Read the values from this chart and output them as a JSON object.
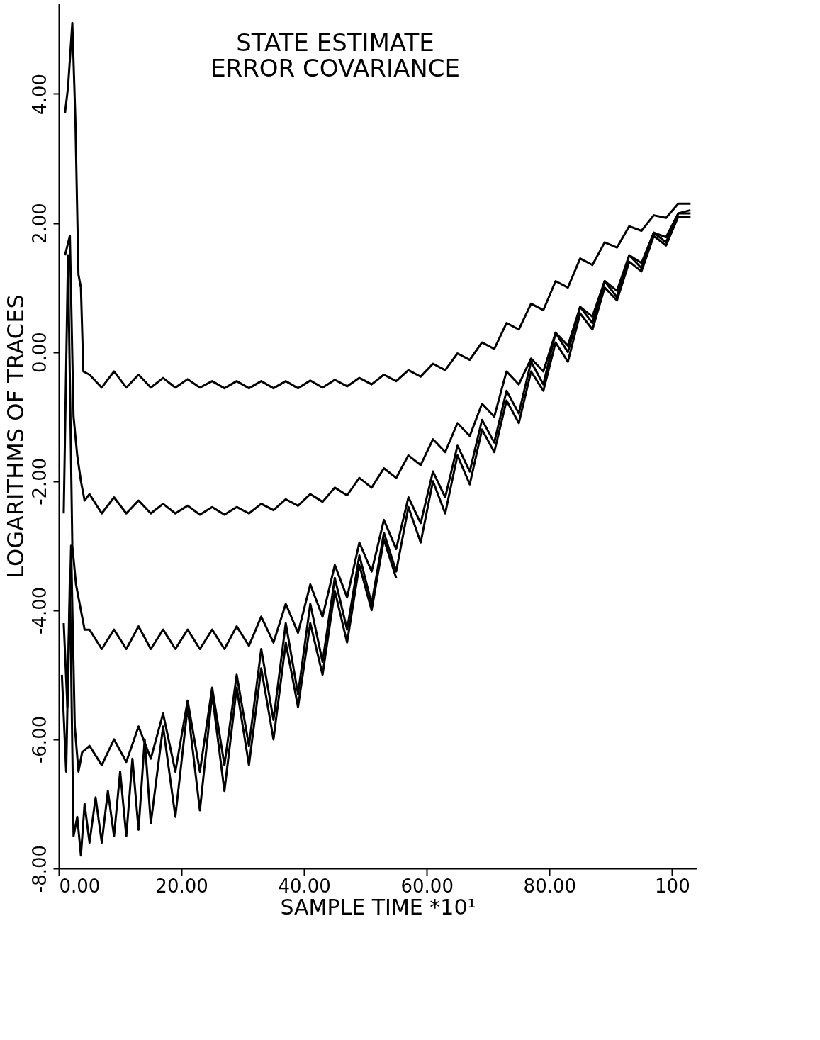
{
  "chart_data": {
    "type": "line",
    "title": "STATE ESTIMATE\nERROR COVARIANCE",
    "xlabel": "SAMPLE TIME *10¹",
    "ylabel": "LOGARITHMS OF TRACES",
    "xlim": [
      0,
      104
    ],
    "ylim": [
      -8,
      5.4
    ],
    "xticks": [
      {
        "value": 0,
        "label": "0.00"
      },
      {
        "value": 20,
        "label": "20.00"
      },
      {
        "value": 40,
        "label": "40.00"
      },
      {
        "value": 60,
        "label": "60.00"
      },
      {
        "value": 80,
        "label": "80.00"
      },
      {
        "value": 100,
        "label": "100"
      }
    ],
    "yticks": [
      {
        "value": -8,
        "label": "-8.00"
      },
      {
        "value": -6,
        "label": "-6.00"
      },
      {
        "value": -4,
        "label": "-4.00"
      },
      {
        "value": -2,
        "label": "-2.00"
      },
      {
        "value": 0,
        "label": "0.00"
      },
      {
        "value": 2,
        "label": "2.00"
      },
      {
        "value": 4,
        "label": "4.00"
      }
    ],
    "grid": false,
    "legend": false,
    "marker": "none",
    "line_style": "solid",
    "series": [
      {
        "color": "#000000",
        "x": [
          1,
          1.5,
          2.2,
          2.7,
          3.2,
          3.6,
          4.0,
          5,
          7,
          9,
          11,
          13,
          15,
          17,
          19,
          21,
          23,
          25,
          27,
          29,
          31,
          33,
          35,
          37,
          39,
          41,
          43,
          45,
          47,
          49,
          51,
          53,
          55,
          57,
          59,
          61,
          63,
          65,
          67,
          69,
          71,
          73,
          75,
          77,
          79,
          81,
          83,
          85,
          87,
          89,
          91,
          93,
          95,
          97,
          99,
          101,
          103
        ],
        "values": [
          3.7,
          4.1,
          5.1,
          3.6,
          1.2,
          1.0,
          -0.3,
          -0.35,
          -0.55,
          -0.3,
          -0.55,
          -0.35,
          -0.55,
          -0.4,
          -0.55,
          -0.42,
          -0.55,
          -0.45,
          -0.56,
          -0.45,
          -0.56,
          -0.45,
          -0.56,
          -0.45,
          -0.56,
          -0.44,
          -0.55,
          -0.43,
          -0.53,
          -0.4,
          -0.5,
          -0.35,
          -0.45,
          -0.28,
          -0.38,
          -0.18,
          -0.28,
          -0.02,
          -0.12,
          0.15,
          0.05,
          0.45,
          0.35,
          0.75,
          0.65,
          1.1,
          1.0,
          1.45,
          1.35,
          1.7,
          1.62,
          1.95,
          1.88,
          2.12,
          2.08,
          2.3,
          2.3
        ]
      },
      {
        "color": "#000000",
        "x": [
          1,
          1.8,
          2.4,
          3.0,
          3.6,
          4.2,
          5,
          7,
          9,
          11,
          13,
          15,
          17,
          19,
          21,
          23,
          25,
          27,
          29,
          31,
          33,
          35,
          37,
          39,
          41,
          43,
          45,
          47,
          49,
          51,
          53,
          55,
          57,
          59,
          61,
          63,
          65,
          67,
          69,
          71,
          73,
          75,
          77,
          79,
          81,
          83,
          85,
          87,
          89,
          91,
          93,
          95,
          97,
          99,
          101,
          103
        ],
        "values": [
          1.5,
          1.8,
          -1.0,
          -1.6,
          -2.0,
          -2.3,
          -2.2,
          -2.5,
          -2.25,
          -2.5,
          -2.3,
          -2.5,
          -2.35,
          -2.5,
          -2.38,
          -2.52,
          -2.4,
          -2.52,
          -2.4,
          -2.5,
          -2.35,
          -2.45,
          -2.28,
          -2.38,
          -2.2,
          -2.32,
          -2.1,
          -2.22,
          -1.95,
          -2.1,
          -1.8,
          -1.95,
          -1.6,
          -1.75,
          -1.35,
          -1.55,
          -1.1,
          -1.3,
          -0.8,
          -1.0,
          -0.3,
          -0.5,
          -0.1,
          -0.3,
          0.3,
          0.1,
          0.7,
          0.55,
          1.1,
          0.95,
          1.5,
          1.38,
          1.85,
          1.78,
          2.15,
          2.2
        ]
      },
      {
        "color": "#000000",
        "x": [
          0.8,
          1.5,
          2.2,
          2.8,
          3.4,
          4.2,
          5,
          7,
          9,
          11,
          13,
          15,
          17,
          19,
          21,
          23,
          25,
          27,
          29,
          31,
          33,
          35,
          37,
          39,
          41,
          43,
          45,
          47,
          49,
          51,
          53,
          55,
          57,
          59,
          61,
          63,
          65,
          67,
          69,
          71,
          73,
          75,
          77,
          79,
          81,
          83,
          85,
          87,
          89,
          91,
          93,
          95,
          97,
          99,
          101,
          103
        ],
        "values": [
          -2.5,
          1.5,
          -3.0,
          -3.6,
          -3.9,
          -4.3,
          -4.3,
          -4.6,
          -4.3,
          -4.6,
          -4.25,
          -4.6,
          -4.3,
          -4.6,
          -4.3,
          -4.6,
          -4.3,
          -4.6,
          -4.25,
          -4.55,
          -4.1,
          -4.5,
          -3.9,
          -4.35,
          -3.6,
          -4.1,
          -3.3,
          -3.8,
          -2.95,
          -3.4,
          -2.6,
          -3.05,
          -2.25,
          -2.65,
          -1.85,
          -2.25,
          -1.45,
          -1.85,
          -1.05,
          -1.4,
          -0.6,
          -0.95,
          -0.15,
          -0.5,
          0.3,
          0.0,
          0.7,
          0.45,
          1.1,
          0.85,
          1.5,
          1.3,
          1.85,
          1.7,
          2.15,
          2.15
        ]
      },
      {
        "color": "#000000",
        "x": [
          0.8,
          1.4,
          2.0,
          2.6,
          3.2,
          3.8,
          5,
          7,
          9,
          11,
          13,
          15,
          17,
          19,
          21,
          23,
          25,
          27,
          29,
          31,
          33,
          35,
          37,
          39,
          41,
          43,
          45,
          47,
          49,
          51,
          53,
          55,
          57,
          59,
          61,
          63,
          65,
          67,
          69,
          71,
          73,
          75,
          77,
          79,
          81,
          83,
          85,
          87,
          89,
          91,
          93,
          95,
          97,
          99,
          101,
          103
        ],
        "values": [
          -4.2,
          -5.5,
          -3.0,
          -5.8,
          -6.5,
          -6.2,
          -6.1,
          -6.4,
          -6.0,
          -6.35,
          -5.8,
          -6.3,
          -5.6,
          -6.5,
          -5.4,
          -6.5,
          -5.2,
          -6.4,
          -5.0,
          -6.1,
          -4.6,
          -5.7,
          -4.2,
          -5.3,
          -3.9,
          -4.8,
          -3.5,
          -4.3,
          -3.15,
          -3.9,
          -2.8,
          -3.4,
          -2.4,
          -2.95,
          -2.0,
          -2.5,
          -1.6,
          -2.05,
          -1.2,
          -1.55,
          -0.75,
          -1.1,
          -0.3,
          -0.6,
          0.15,
          -0.15,
          0.6,
          0.35,
          1.0,
          0.8,
          1.4,
          1.25,
          1.8,
          1.65,
          2.1,
          2.1
        ]
      },
      {
        "color": "#000000",
        "x": [
          0.5,
          1.2,
          1.8,
          2.4,
          3.0,
          3.6,
          4.2,
          5,
          6,
          7,
          8,
          9,
          10,
          11,
          12,
          13,
          14,
          15,
          17,
          19,
          21,
          23,
          25,
          27,
          29,
          31,
          33,
          35,
          37,
          39,
          41,
          43,
          45,
          47,
          49,
          51,
          53,
          55
        ],
        "values": [
          -5.0,
          -6.5,
          -3.5,
          -7.5,
          -7.2,
          -7.8,
          -7.0,
          -7.6,
          -6.9,
          -7.6,
          -6.8,
          -7.5,
          -6.5,
          -7.5,
          -6.3,
          -7.4,
          -6.0,
          -7.3,
          -5.8,
          -7.2,
          -5.5,
          -7.1,
          -5.3,
          -6.8,
          -5.2,
          -6.4,
          -4.9,
          -6.0,
          -4.5,
          -5.5,
          -4.2,
          -5.0,
          -3.7,
          -4.5,
          -3.3,
          -4.0,
          -2.9,
          -3.5
        ]
      }
    ]
  }
}
